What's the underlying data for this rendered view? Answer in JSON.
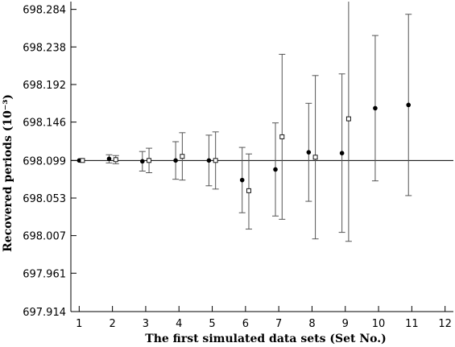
{
  "chart_data": {
    "type": "scatter",
    "title": "",
    "xlabel": "The first simulated data sets (Set No.)",
    "ylabel": "Recovered periods (10⁻³)",
    "xlim": [
      0.75,
      12.25
    ],
    "ylim": [
      697.914,
      698.2935
    ],
    "x_ticks": [
      1,
      2,
      3,
      4,
      5,
      6,
      7,
      8,
      9,
      10,
      11,
      12
    ],
    "y_ticks": [
      697.914,
      697.961,
      698.007,
      698.053,
      698.099,
      698.146,
      698.192,
      698.238,
      698.284
    ],
    "y_tick_labels": [
      "697.914",
      "697.961",
      "698.007",
      "698.053",
      "698.099",
      "698.146",
      "698.192",
      "698.238",
      "698.284"
    ],
    "reference_line": 698.099,
    "grid": false,
    "legend": "none",
    "marker_colors": {
      "filled": "#000000",
      "open": "#ffffff",
      "edge": "#000000"
    },
    "series": [
      {
        "marker": "filled-circle",
        "points": [
          {
            "x": 1.0,
            "y": 698.099,
            "err_lo": 698.099,
            "err_hi": 698.099
          },
          {
            "x": 1.9,
            "y": 698.101,
            "err_lo": 698.096,
            "err_hi": 698.106
          },
          {
            "x": 2.9,
            "y": 698.098,
            "err_lo": 698.086,
            "err_hi": 698.11
          },
          {
            "x": 3.9,
            "y": 698.099,
            "err_lo": 698.076,
            "err_hi": 698.122
          },
          {
            "x": 4.9,
            "y": 698.099,
            "err_lo": 698.068,
            "err_hi": 698.13
          },
          {
            "x": 5.9,
            "y": 698.075,
            "err_lo": 698.035,
            "err_hi": 698.115
          },
          {
            "x": 6.9,
            "y": 698.088,
            "err_lo": 698.031,
            "err_hi": 698.145
          },
          {
            "x": 7.9,
            "y": 698.109,
            "err_lo": 698.049,
            "err_hi": 698.169
          },
          {
            "x": 8.9,
            "y": 698.108,
            "err_lo": 698.011,
            "err_hi": 698.205
          },
          {
            "x": 9.9,
            "y": 698.163,
            "err_lo": 698.074,
            "err_hi": 698.252
          },
          {
            "x": 10.9,
            "y": 698.167,
            "err_lo": 698.056,
            "err_hi": 698.278
          }
        ]
      },
      {
        "marker": "open-square",
        "points": [
          {
            "x": 1.1,
            "y": 698.099,
            "err_lo": 698.099,
            "err_hi": 698.099
          },
          {
            "x": 2.1,
            "y": 698.1,
            "err_lo": 698.095,
            "err_hi": 698.105
          },
          {
            "x": 3.1,
            "y": 698.099,
            "err_lo": 698.084,
            "err_hi": 698.114
          },
          {
            "x": 4.1,
            "y": 698.104,
            "err_lo": 698.075,
            "err_hi": 698.133
          },
          {
            "x": 5.1,
            "y": 698.099,
            "err_lo": 698.064,
            "err_hi": 698.134
          },
          {
            "x": 6.1,
            "y": 698.062,
            "err_lo": 698.015,
            "err_hi": 698.107
          },
          {
            "x": 7.1,
            "y": 698.128,
            "err_lo": 698.027,
            "err_hi": 698.229
          },
          {
            "x": 8.1,
            "y": 698.103,
            "err_lo": 698.003,
            "err_hi": 698.203
          },
          {
            "x": 9.1,
            "y": 698.15,
            "err_lo": 698.0,
            "err_hi": 698.3
          }
        ]
      }
    ]
  }
}
